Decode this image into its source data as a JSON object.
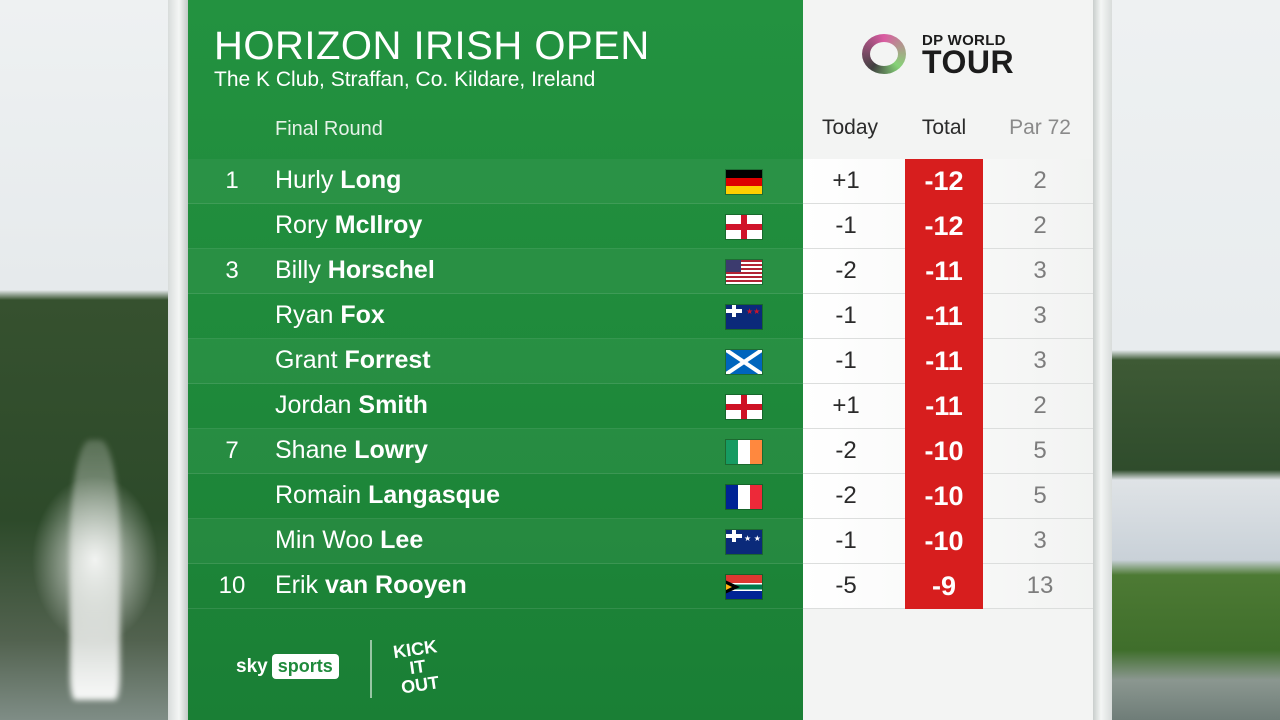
{
  "tournament": {
    "title": "HORIZON IRISH OPEN",
    "venue": "The K Club, Straffan, Co. Kildare, Ireland",
    "round": "Final Round"
  },
  "sponsor_logo": {
    "line1": "DP WORLD",
    "line2": "TOUR"
  },
  "columns": {
    "today": "Today",
    "total": "Total",
    "par": "Par 72"
  },
  "colors": {
    "green": "#1f8a3b",
    "total_red": "#d71e1e"
  },
  "leaderboard": [
    {
      "pos": "1",
      "first": "Hurly",
      "last": "Long",
      "flag": "germany-flag",
      "today": "+1",
      "total": "-12",
      "thru": "2"
    },
    {
      "pos": "",
      "first": "Rory",
      "last": "McIlroy",
      "flag": "northern-ireland-flag",
      "today": "-1",
      "total": "-12",
      "thru": "2"
    },
    {
      "pos": "3",
      "first": "Billy",
      "last": "Horschel",
      "flag": "usa-flag",
      "today": "-2",
      "total": "-11",
      "thru": "3"
    },
    {
      "pos": "",
      "first": "Ryan",
      "last": "Fox",
      "flag": "new-zealand-flag",
      "today": "-1",
      "total": "-11",
      "thru": "3"
    },
    {
      "pos": "",
      "first": "Grant",
      "last": "Forrest",
      "flag": "scotland-flag",
      "today": "-1",
      "total": "-11",
      "thru": "3"
    },
    {
      "pos": "",
      "first": "Jordan",
      "last": "Smith",
      "flag": "england-flag",
      "today": "+1",
      "total": "-11",
      "thru": "2"
    },
    {
      "pos": "7",
      "first": "Shane",
      "last": "Lowry",
      "flag": "ireland-flag",
      "today": "-2",
      "total": "-10",
      "thru": "5"
    },
    {
      "pos": "",
      "first": "Romain",
      "last": "Langasque",
      "flag": "france-flag",
      "today": "-2",
      "total": "-10",
      "thru": "5"
    },
    {
      "pos": "",
      "first": "Min Woo",
      "last": "Lee",
      "flag": "australia-flag",
      "today": "-1",
      "total": "-10",
      "thru": "3"
    },
    {
      "pos": "10",
      "first": "Erik",
      "last": "van Rooyen",
      "flag": "south-africa-flag",
      "today": "-5",
      "total": "-9",
      "thru": "13"
    }
  ],
  "footer": {
    "sky": "sky",
    "sports": "sports",
    "kick_top": "KICK",
    "kick_mid": "IT",
    "kick_bot": "OUT"
  }
}
